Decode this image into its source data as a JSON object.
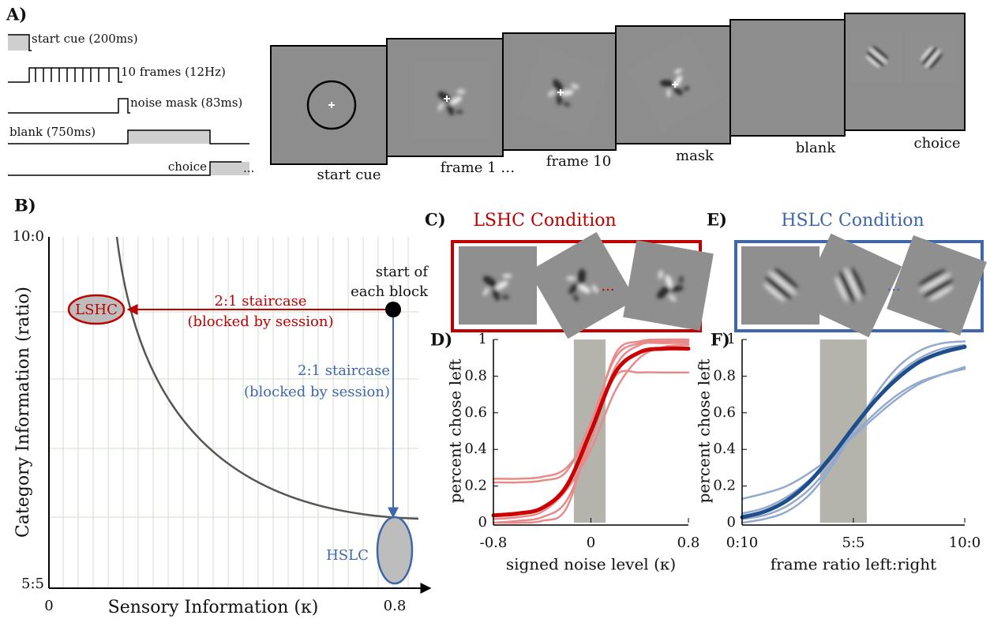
{
  "panel_a": {
    "label": "A)",
    "timeline": [
      "start cue (200ms)",
      "10 frames (12Hz)",
      "noise mask (83ms)",
      "blank (750ms)",
      "choice"
    ],
    "ellipsis": "...",
    "screens": [
      "start cue",
      "frame 1 …",
      "frame 10",
      "mask",
      "blank",
      "choice"
    ]
  },
  "panel_b": {
    "label": "B)",
    "y_label": "Category Information (ratio)",
    "x_label": "Sensory Information (κ)",
    "y_top": "10:0",
    "y_bottom": "5:5",
    "x_left": "0",
    "x_right": "0.8",
    "start": [
      "start of",
      "each block"
    ],
    "lshc_staircase": [
      "2:1 staircase",
      "(blocked by session)"
    ],
    "hslc_staircase": [
      "2:1 staircase",
      "(blocked by session)"
    ],
    "lshc": "LSHC",
    "hslc": "HSLC"
  },
  "panel_c": {
    "label": "C)",
    "title": "LSHC Condition",
    "ellipsis": "..."
  },
  "panel_e": {
    "label": "E)",
    "title": "HSLC Condition",
    "ellipsis": "..."
  },
  "chart_data": [
    {
      "type": "line",
      "label": "D)",
      "x_label": "signed noise level (κ)",
      "y_label": "percent chose left",
      "x": [
        -0.8,
        -0.6,
        -0.4,
        -0.2,
        0,
        0.2,
        0.4,
        0.6,
        0.8
      ],
      "series": [
        {
          "color": "#e88a8a",
          "values": [
            0.24,
            0.24,
            0.25,
            0.3,
            0.5,
            0.8,
            0.82,
            0.82,
            0.82
          ]
        },
        {
          "color": "#e88a8a",
          "values": [
            0.22,
            0.22,
            0.23,
            0.28,
            0.55,
            0.9,
            0.98,
            0.99,
            0.99
          ]
        },
        {
          "color": "#e88a8a",
          "values": [
            0.0,
            0.01,
            0.03,
            0.12,
            0.45,
            0.85,
            0.97,
            0.98,
            0.98
          ]
        },
        {
          "color": "#e88a8a",
          "values": [
            0.02,
            0.03,
            0.06,
            0.18,
            0.4,
            0.72,
            0.9,
            0.96,
            0.97
          ]
        },
        {
          "color": "#e88a8a",
          "values": [
            0.0,
            0.0,
            0.01,
            0.08,
            0.5,
            0.92,
            0.99,
            1.0,
            1.0
          ]
        },
        {
          "color": "#cc0000",
          "bold": true,
          "values": [
            0.04,
            0.05,
            0.08,
            0.2,
            0.5,
            0.82,
            0.93,
            0.95,
            0.95
          ]
        }
      ],
      "band": [
        -0.14,
        0.12
      ],
      "band_color": "#b4b4ac",
      "xlim": [
        -0.8,
        0.8
      ],
      "ylim": [
        0,
        1
      ],
      "xticks": [
        -0.8,
        0,
        0.8
      ],
      "yticks": [
        0,
        0.2,
        0.4,
        0.6,
        0.8,
        1
      ]
    },
    {
      "type": "line",
      "label": "F)",
      "x_label": "frame ratio left:right",
      "y_label": "percent chose left",
      "x": [
        0,
        1,
        2,
        3,
        4,
        5,
        6,
        7,
        8,
        9,
        10
      ],
      "series": [
        {
          "color": "#94aacc",
          "values": [
            0.13,
            0.16,
            0.2,
            0.27,
            0.36,
            0.47,
            0.58,
            0.68,
            0.76,
            0.81,
            0.85
          ]
        },
        {
          "color": "#94aacc",
          "values": [
            0.0,
            0.02,
            0.06,
            0.15,
            0.3,
            0.5,
            0.7,
            0.85,
            0.94,
            0.98,
            0.99
          ]
        },
        {
          "color": "#94aacc",
          "values": [
            0.05,
            0.08,
            0.14,
            0.23,
            0.35,
            0.48,
            0.6,
            0.7,
            0.77,
            0.81,
            0.84
          ]
        },
        {
          "color": "#94aacc",
          "values": [
            0.02,
            0.04,
            0.09,
            0.18,
            0.32,
            0.5,
            0.67,
            0.81,
            0.9,
            0.95,
            0.97
          ]
        },
        {
          "color": "#1f4e8c",
          "bold": true,
          "values": [
            0.03,
            0.06,
            0.12,
            0.22,
            0.36,
            0.52,
            0.67,
            0.79,
            0.88,
            0.93,
            0.96
          ]
        }
      ],
      "band": [
        3.5,
        5.6
      ],
      "band_color": "#b4b4ac",
      "xlim": [
        0,
        10
      ],
      "ylim": [
        0,
        1
      ],
      "xticks": [
        {
          "value": 0,
          "label": "0:10"
        },
        {
          "value": 5,
          "label": "5:5"
        },
        {
          "value": 10,
          "label": "10:0"
        }
      ],
      "yticks": [
        0,
        0.2,
        0.4,
        0.6,
        0.8,
        1
      ]
    }
  ]
}
